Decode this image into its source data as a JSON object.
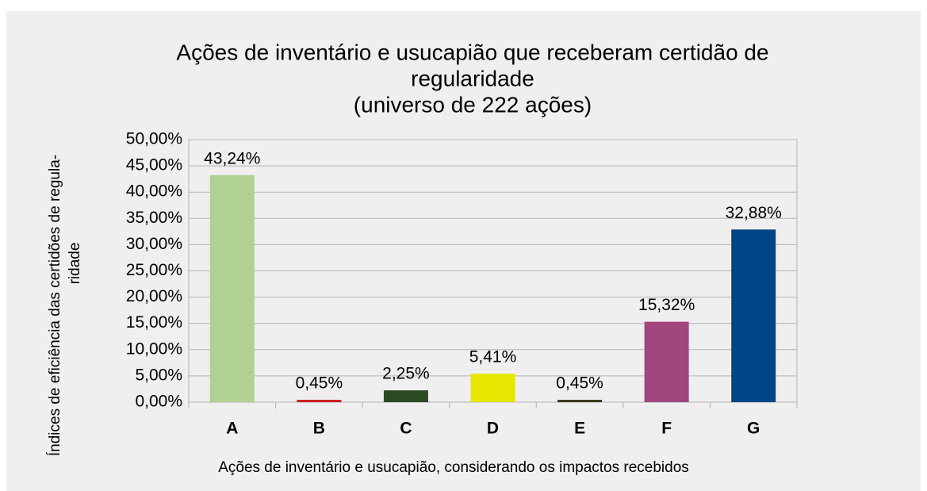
{
  "chart_data": {
    "type": "bar",
    "title": [
      "Ações de inventário e usucapião que receberam certidão de",
      "regularidade",
      "(universo de 222 ações)"
    ],
    "x_label": "Ações de inventário e usucapião, considerando os impactos recebidos",
    "y_label": [
      "Índices de eficiência das certidões de regula-",
      "ridade"
    ],
    "categories": [
      "A",
      "B",
      "C",
      "D",
      "E",
      "F",
      "G"
    ],
    "values": [
      43.24,
      0.45,
      2.25,
      5.41,
      0.45,
      15.32,
      32.88
    ],
    "value_labels": [
      "43,24%",
      "0,45%",
      "2,25%",
      "5,41%",
      "0,45%",
      "15,32%",
      "32,88%"
    ],
    "colors": [
      "#b0d192",
      "#c9211e",
      "#2a4b21",
      "#e6e600",
      "#3b3b1c",
      "#a1467e",
      "#004586"
    ],
    "ylim": [
      0,
      50
    ],
    "yticks": [
      {
        "value": 0,
        "label": "0,00%"
      },
      {
        "value": 5,
        "label": "5,00%"
      },
      {
        "value": 10,
        "label": "10,00%"
      },
      {
        "value": 15,
        "label": "15,00%"
      },
      {
        "value": 20,
        "label": "20,00%"
      },
      {
        "value": 25,
        "label": "25,00%"
      },
      {
        "value": 30,
        "label": "30,00%"
      },
      {
        "value": 35,
        "label": "35,00%"
      },
      {
        "value": 40,
        "label": "40,00%"
      },
      {
        "value": 45,
        "label": "45,00%"
      },
      {
        "value": 50,
        "label": "50,00%"
      }
    ],
    "grid": true
  }
}
